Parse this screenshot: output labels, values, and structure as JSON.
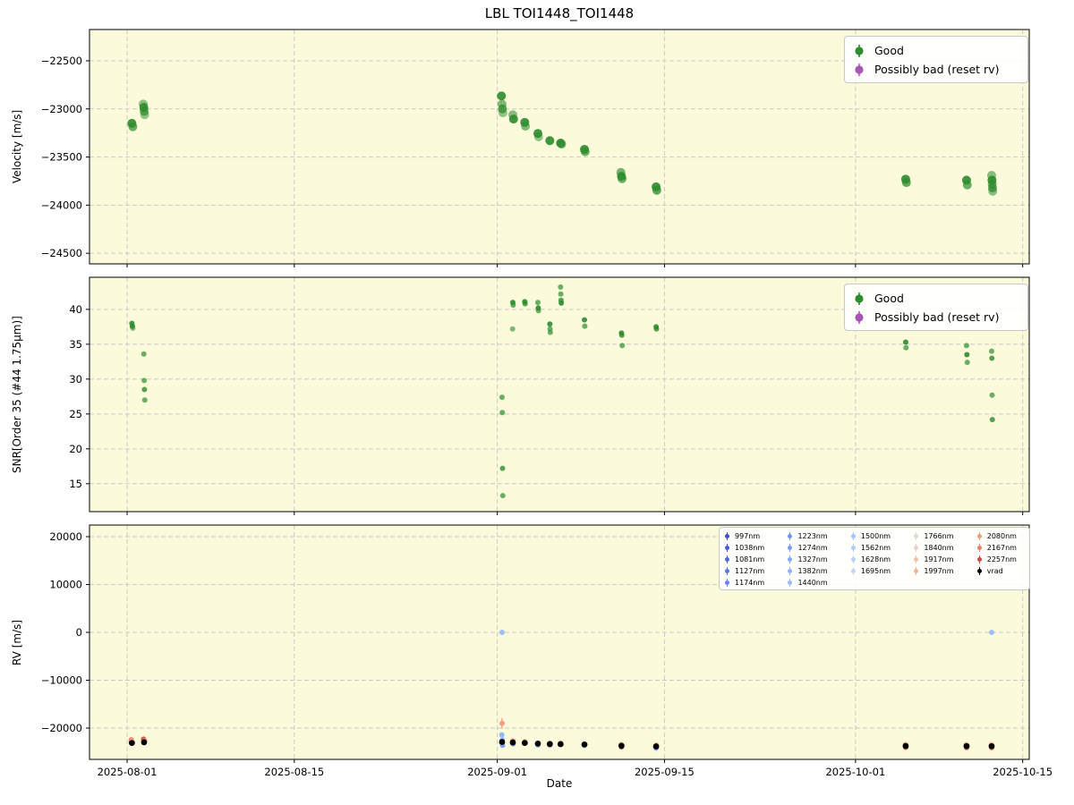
{
  "title": "LBL TOI1448_TOI1448",
  "colors": {
    "plot_bg": "#fbfbdc",
    "grid": "#c9c9c9",
    "good": "#2e8b2e",
    "possibly_bad": "#a855b5",
    "vrad": "#000000",
    "axis": "#000000"
  },
  "chart_data": {
    "type": "scatter",
    "title": "LBL TOI1448_TOI1448",
    "x_axis": {
      "label": "Date",
      "lim_days": [
        -3.15,
        75.55
      ],
      "ticks": [
        {
          "day": 0,
          "label": "2025-08-01"
        },
        {
          "day": 14,
          "label": "2025-08-15"
        },
        {
          "day": 31,
          "label": "2025-09-01"
        },
        {
          "day": 45,
          "label": "2025-09-15"
        },
        {
          "day": 61,
          "label": "2025-10-01"
        },
        {
          "day": 75,
          "label": "2025-10-15"
        }
      ]
    },
    "panels": [
      {
        "name": "velocity",
        "ylabel": "Velocity [m/s]",
        "ylim": [
          -24610,
          -22175
        ],
        "yticks": [
          {
            "v": -22500,
            "label": "−22500"
          },
          {
            "v": -23000,
            "label": "−23000"
          },
          {
            "v": -23500,
            "label": "−23500"
          },
          {
            "v": -24000,
            "label": "−24000"
          },
          {
            "v": -24500,
            "label": "−24500"
          }
        ],
        "legend": [
          {
            "label": "Good",
            "color": "#2e8b2e"
          },
          {
            "label": "Possibly bad (reset rv)",
            "color": "#a855b5"
          }
        ],
        "points": [
          [
            0.4,
            -23150,
            0.9
          ],
          [
            0.48,
            -23185,
            0.7
          ],
          [
            1.35,
            -22950,
            0.55
          ],
          [
            1.4,
            -22985,
            0.9
          ],
          [
            1.43,
            -23025,
            0.7
          ],
          [
            1.47,
            -23060,
            0.5
          ],
          [
            31.35,
            -22865,
            0.9
          ],
          [
            31.4,
            -22950,
            0.6
          ],
          [
            31.43,
            -23000,
            0.75
          ],
          [
            31.47,
            -23040,
            0.5
          ],
          [
            32.3,
            -23060,
            0.55
          ],
          [
            32.36,
            -23105,
            0.9
          ],
          [
            33.3,
            -23140,
            0.9
          ],
          [
            33.36,
            -23180,
            0.6
          ],
          [
            34.4,
            -23255,
            0.9
          ],
          [
            34.46,
            -23290,
            0.5
          ],
          [
            35.4,
            -23330,
            0.9
          ],
          [
            36.3,
            -23355,
            0.9
          ],
          [
            36.38,
            -23365,
            0.7
          ],
          [
            38.3,
            -23420,
            0.9
          ],
          [
            38.36,
            -23445,
            0.7
          ],
          [
            41.35,
            -23660,
            0.65
          ],
          [
            41.4,
            -23700,
            0.9
          ],
          [
            41.45,
            -23725,
            0.7
          ],
          [
            44.3,
            -23810,
            0.9
          ],
          [
            44.36,
            -23845,
            0.75
          ],
          [
            65.2,
            -23730,
            0.9
          ],
          [
            65.26,
            -23765,
            0.75
          ],
          [
            70.3,
            -23740,
            0.9
          ],
          [
            70.36,
            -23790,
            0.7
          ],
          [
            72.4,
            -23690,
            0.55
          ],
          [
            72.43,
            -23740,
            0.9
          ],
          [
            72.45,
            -23780,
            0.7
          ],
          [
            72.47,
            -23820,
            0.75
          ],
          [
            72.49,
            -23855,
            0.55
          ]
        ]
      },
      {
        "name": "snr",
        "ylabel": "SNR[Order 35 (#44 1.75μm)]",
        "ylim": [
          11.0,
          44.6
        ],
        "yticks": [
          {
            "v": 40,
            "label": "40"
          },
          {
            "v": 35,
            "label": "35"
          },
          {
            "v": 30,
            "label": "30"
          },
          {
            "v": 25,
            "label": "25"
          },
          {
            "v": 20,
            "label": "20"
          },
          {
            "v": 15,
            "label": "15"
          }
        ],
        "legend": [
          {
            "label": "Good",
            "color": "#2e8b2e"
          },
          {
            "label": "Possibly bad (reset rv)",
            "color": "#a855b5"
          }
        ],
        "points": [
          [
            0.4,
            38.0,
            0.9
          ],
          [
            0.44,
            37.6,
            0.9
          ],
          [
            0.48,
            37.3,
            0.6
          ],
          [
            1.4,
            33.6,
            0.7
          ],
          [
            1.43,
            29.8,
            0.7
          ],
          [
            1.45,
            28.5,
            0.8
          ],
          [
            1.48,
            27.0,
            0.7
          ],
          [
            31.4,
            27.4,
            0.7
          ],
          [
            31.42,
            25.2,
            0.7
          ],
          [
            31.44,
            17.2,
            0.8
          ],
          [
            31.46,
            13.3,
            0.7
          ],
          [
            32.28,
            37.2,
            0.6
          ],
          [
            32.3,
            41.0,
            0.9
          ],
          [
            32.33,
            40.6,
            0.7
          ],
          [
            33.3,
            41.1,
            0.9
          ],
          [
            33.33,
            40.8,
            0.8
          ],
          [
            34.4,
            41.0,
            0.7
          ],
          [
            34.43,
            40.2,
            0.9
          ],
          [
            34.45,
            39.8,
            0.7
          ],
          [
            35.4,
            37.9,
            0.9
          ],
          [
            35.42,
            37.2,
            0.7
          ],
          [
            35.44,
            36.7,
            0.7
          ],
          [
            36.3,
            43.2,
            0.7
          ],
          [
            36.32,
            42.2,
            0.7
          ],
          [
            36.34,
            41.3,
            0.8
          ],
          [
            36.36,
            40.9,
            0.9
          ],
          [
            38.3,
            38.5,
            0.9
          ],
          [
            38.33,
            37.6,
            0.7
          ],
          [
            41.4,
            36.6,
            0.9
          ],
          [
            41.43,
            36.3,
            0.8
          ],
          [
            41.46,
            34.8,
            0.7
          ],
          [
            44.3,
            37.5,
            0.9
          ],
          [
            44.33,
            37.2,
            0.8
          ],
          [
            65.2,
            35.3,
            0.9
          ],
          [
            65.23,
            34.5,
            0.7
          ],
          [
            70.3,
            34.8,
            0.7
          ],
          [
            70.33,
            33.5,
            0.9
          ],
          [
            70.36,
            32.4,
            0.7
          ],
          [
            72.4,
            34.0,
            0.7
          ],
          [
            72.42,
            33.0,
            0.8
          ],
          [
            72.44,
            27.7,
            0.7
          ],
          [
            72.46,
            24.2,
            0.8
          ]
        ]
      },
      {
        "name": "rv",
        "ylabel": "RV [m/s]",
        "ylim": [
          -26540,
          22430
        ],
        "yticks": [
          {
            "v": 20000,
            "label": "20000"
          },
          {
            "v": 10000,
            "label": "10000"
          },
          {
            "v": 0,
            "label": "0"
          },
          {
            "v": -10000,
            "label": "−10000"
          },
          {
            "v": -20000,
            "label": "−20000"
          }
        ],
        "legend_columns": [
          5,
          5,
          4,
          4,
          4
        ],
        "channels": [
          {
            "label": "997nm",
            "color": "#3d50c3"
          },
          {
            "label": "1038nm",
            "color": "#455cce"
          },
          {
            "label": "1081nm",
            "color": "#4f69d9"
          },
          {
            "label": "1127nm",
            "color": "#5977e3"
          },
          {
            "label": "1174nm",
            "color": "#6485ec"
          },
          {
            "label": "1223nm",
            "color": "#6f92f3"
          },
          {
            "label": "1274nm",
            "color": "#7a9df8"
          },
          {
            "label": "1327nm",
            "color": "#85a8fc"
          },
          {
            "label": "1382nm",
            "color": "#90b2fe"
          },
          {
            "label": "1440nm",
            "color": "#9bbbff"
          },
          {
            "label": "1500nm",
            "color": "#a6c3fe"
          },
          {
            "label": "1562nm",
            "color": "#b1cafb"
          },
          {
            "label": "1628nm",
            "color": "#bbd0f8"
          },
          {
            "label": "1695nm",
            "color": "#c6d6f1"
          },
          {
            "label": "1766nm",
            "color": "#e3d9d3"
          },
          {
            "label": "1840nm",
            "color": "#edd0c0"
          },
          {
            "label": "1917nm",
            "color": "#f3c2ab"
          },
          {
            "label": "1997nm",
            "color": "#f5b295"
          },
          {
            "label": "2080nm",
            "color": "#f59c7d"
          },
          {
            "label": "2167nm",
            "color": "#e87f66"
          },
          {
            "label": "2257nm",
            "color": "#cd4a42"
          },
          {
            "label": "vrad",
            "color": "#000000"
          }
        ],
        "vrad_points": [
          [
            0.4,
            -23100
          ],
          [
            1.42,
            -22950
          ],
          [
            31.4,
            -22900
          ],
          [
            32.3,
            -23000
          ],
          [
            33.3,
            -23100
          ],
          [
            34.4,
            -23250
          ],
          [
            35.4,
            -23330
          ],
          [
            36.3,
            -23360
          ],
          [
            38.3,
            -23430
          ],
          [
            41.4,
            -23700
          ],
          [
            44.3,
            -23830
          ],
          [
            65.2,
            -23750
          ],
          [
            70.3,
            -23760
          ],
          [
            72.4,
            -23780
          ]
        ],
        "channel_points": [
          [
            0.35,
            -22450,
            "#e87f66"
          ],
          [
            0.42,
            -22800,
            "#f5b295"
          ],
          [
            1.38,
            -22300,
            "#cd4a42"
          ],
          [
            1.46,
            -22650,
            "#f59c7d"
          ],
          [
            31.4,
            -19000,
            "#f59c7d",
            1100
          ],
          [
            31.38,
            -21400,
            "#90b2fe"
          ],
          [
            31.42,
            -22400,
            "#9bbbff"
          ],
          [
            31.44,
            -23600,
            "#7a9df8"
          ],
          [
            31.4,
            0,
            "#9bbbff"
          ],
          [
            32.3,
            -22600,
            "#f5b295"
          ],
          [
            32.33,
            -23350,
            "#90b2fe"
          ],
          [
            33.3,
            -22850,
            "#f59c7d"
          ],
          [
            34.4,
            -23550,
            "#90b2fe"
          ],
          [
            35.4,
            -23600,
            "#a6c3fe"
          ],
          [
            36.3,
            -23100,
            "#f5b295"
          ],
          [
            38.3,
            -23650,
            "#b1cafb"
          ],
          [
            41.4,
            -23950,
            "#e87f66"
          ],
          [
            41.37,
            -23450,
            "#f5b295"
          ],
          [
            44.3,
            -24150,
            "#7a9df8"
          ],
          [
            44.33,
            -23550,
            "#f5b295"
          ],
          [
            65.2,
            -24050,
            "#e87f66"
          ],
          [
            65.17,
            -23450,
            "#f5b295"
          ],
          [
            70.3,
            -24050,
            "#cd4a42"
          ],
          [
            70.27,
            -23450,
            "#f5b295"
          ],
          [
            72.4,
            -24100,
            "#e87f66"
          ],
          [
            72.37,
            -23450,
            "#f5b295"
          ],
          [
            72.4,
            0,
            "#9bbbff"
          ]
        ]
      }
    ]
  }
}
